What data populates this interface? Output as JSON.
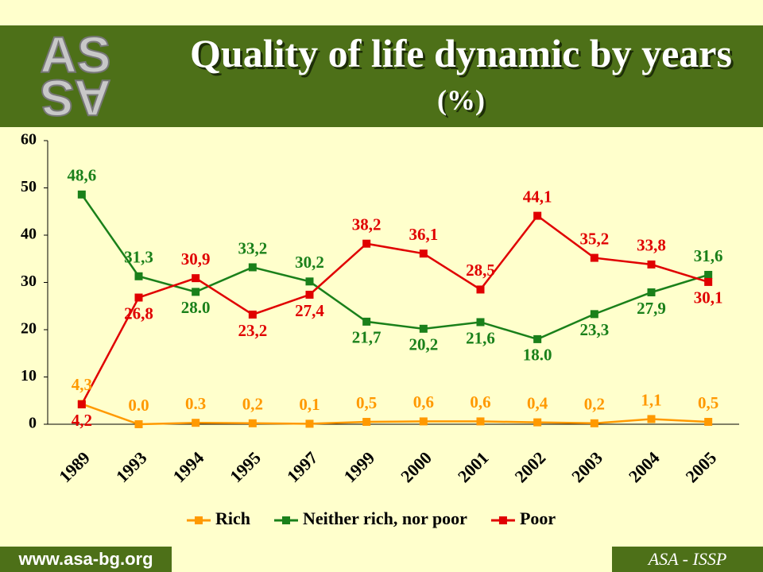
{
  "header": {
    "logo": "AS",
    "title": "Quality of life dynamic by years",
    "title_unit": "(%)"
  },
  "footer": {
    "website": "www.asa-bg.org",
    "source": "ASA - ISSP"
  },
  "chart_data": {
    "type": "line",
    "categories": [
      "1989",
      "1993",
      "1994",
      "1995",
      "1997",
      "1999",
      "2000",
      "2001",
      "2002",
      "2003",
      "2004",
      "2005"
    ],
    "series": [
      {
        "name": "Rich",
        "color": "#ff9900",
        "values": [
          4.3,
          0.0,
          0.3,
          0.2,
          0.1,
          0.5,
          0.6,
          0.6,
          0.4,
          0.2,
          1.1,
          0.5
        ],
        "value_labels": [
          "4,3",
          "0.0",
          "0.3",
          "0,2",
          "0,1",
          "0,5",
          "0,6",
          "0,6",
          "0,4",
          "0,2",
          "1,1",
          "0,5"
        ]
      },
      {
        "name": "Neither rich, nor poor",
        "color": "#1a801a",
        "values": [
          48.6,
          31.3,
          28.0,
          33.2,
          30.2,
          21.7,
          20.2,
          21.6,
          18.0,
          23.3,
          27.9,
          31.6
        ],
        "value_labels": [
          "48,6",
          "31,3",
          "28.0",
          "33,2",
          "30,2",
          "21,7",
          "20,2",
          "21,6",
          "18.0",
          "23,3",
          "27,9",
          "31,6"
        ]
      },
      {
        "name": "Poor",
        "color": "#e00000",
        "values": [
          4.2,
          26.8,
          30.9,
          23.2,
          27.4,
          38.2,
          36.1,
          28.5,
          44.1,
          35.2,
          33.8,
          30.1
        ],
        "value_labels": [
          "4,2",
          "26,8",
          "30,9",
          "23,2",
          "27,4",
          "38,2",
          "36,1",
          "28,5",
          "44,1",
          "35,2",
          "33,8",
          "30,1"
        ]
      }
    ],
    "ylim": [
      0,
      60
    ],
    "yticks": [
      0,
      10,
      20,
      30,
      40,
      50,
      60
    ],
    "grid": false,
    "legend": "bottom"
  }
}
